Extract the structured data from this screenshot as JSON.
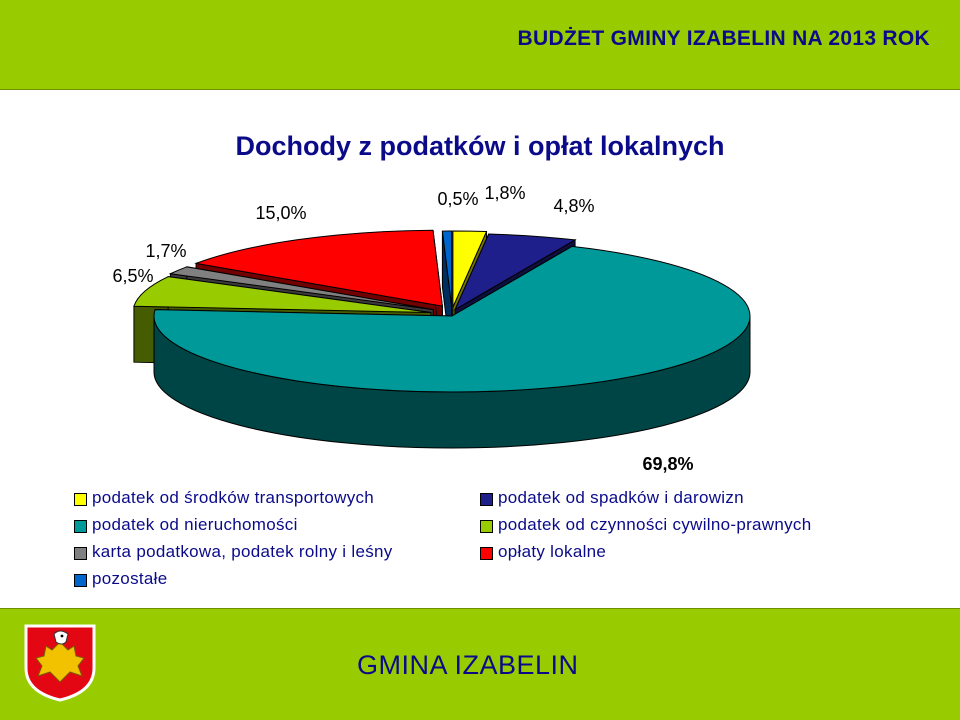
{
  "header": {
    "title": "BUDŻET GMINY IZABELIN NA 2013 ROK"
  },
  "footer": {
    "title": "GMINA IZABELIN"
  },
  "chart_data": {
    "type": "pie",
    "title": "Dochody z podatków i opłat lokalnych",
    "slices": [
      {
        "name": "podatek od środków transportowych",
        "value": 1.8,
        "label": "1,8%",
        "color": "#ffff00"
      },
      {
        "name": "podatek od spadków i darowizn",
        "value": 4.8,
        "label": "4,8%",
        "color": "#1f1f8c"
      },
      {
        "name": "podatek od nieruchomości",
        "value": 69.8,
        "label": "69,8%",
        "color": "#009999"
      },
      {
        "name": "podatek od czynności cywilno-prawnych",
        "value": 6.5,
        "label": "6,5%",
        "color": "#99cc00"
      },
      {
        "name": "karta podatkowa, podatek rolny i leśny",
        "value": 1.7,
        "label": "1,7%",
        "color": "#808080"
      },
      {
        "name": "opłaty lokalne",
        "value": 15.0,
        "label": "15,0%",
        "color": "#ff0000"
      },
      {
        "name": "pozostałe",
        "value": 0.5,
        "label": "0,5%",
        "color": "#0066cc"
      }
    ],
    "legend": [
      {
        "label": "podatek od środków transportowych",
        "color": "#ffff00"
      },
      {
        "label": "podatek od spadków i darowizn",
        "color": "#1f1f8c"
      },
      {
        "label": "podatek od nieruchomości",
        "color": "#009999"
      },
      {
        "label": "podatek od czynności cywilno-prawnych",
        "color": "#99cc00"
      },
      {
        "label": "karta podatkowa, podatek rolny i leśny",
        "color": "#808080"
      },
      {
        "label": "opłaty lokalne",
        "color": "#ff0000"
      },
      {
        "label": "pozostałe",
        "color": "#0066cc"
      }
    ]
  }
}
